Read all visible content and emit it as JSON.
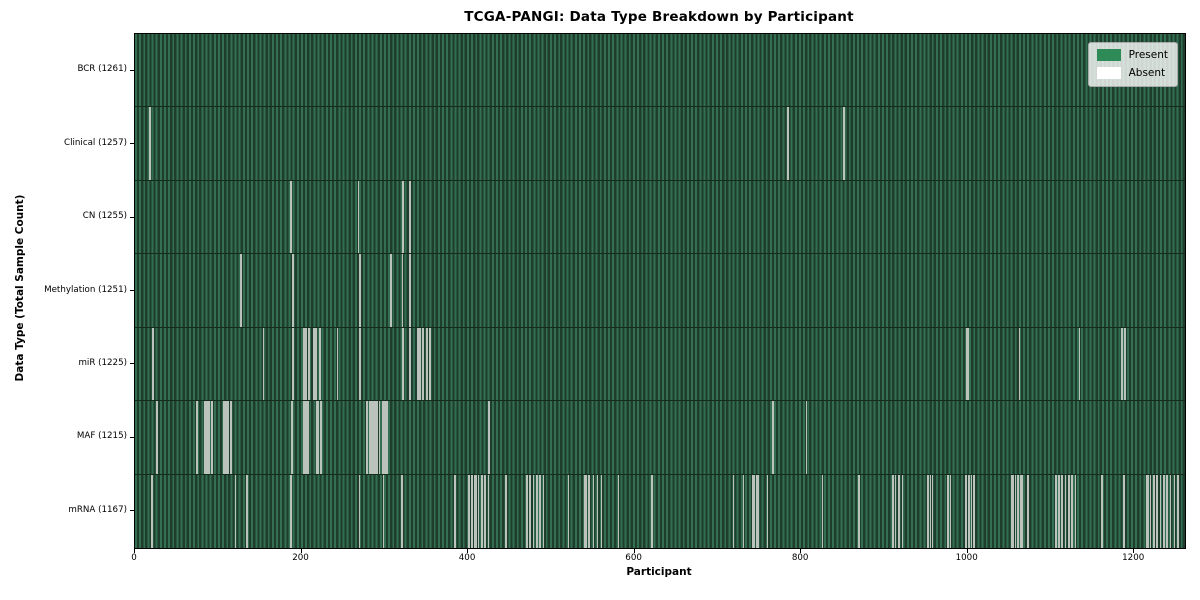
{
  "colors": {
    "present": "#2e8b57",
    "absent": "#ffffff",
    "stripe_bright": "#336f50",
    "stripe_dark": "#1f3d2c",
    "absent_line": "#bcc2bc",
    "row_divider": "#142a1c",
    "plot_border": "#000000",
    "legend_border": "#aaaaaa"
  },
  "legend": {
    "items": [
      {
        "label": "Present",
        "color": "#2e8b57"
      },
      {
        "label": "Absent",
        "color": "#ffffff"
      }
    ]
  },
  "chart_data": {
    "type": "heatmap",
    "title": "TCGA-PANGI: Data Type Breakdown by Participant",
    "xlabel": "Participant",
    "ylabel": "Data Type (Total Sample Count)",
    "x_ticks": [
      0,
      200,
      400,
      600,
      800,
      1000,
      1200
    ],
    "x_range": [
      0,
      1261
    ],
    "total_participants": 1261,
    "grid": false,
    "legend_position": "upper right",
    "legend_entries": [
      "Present",
      "Absent"
    ],
    "cell_present_color": "#2e8b57",
    "cell_absent_color": "#ffffff",
    "rows": [
      {
        "data_type": "BCR",
        "label": "BCR (1261)",
        "present_count": 1261,
        "absent_participants": []
      },
      {
        "data_type": "Clinical",
        "label": "Clinical (1257)",
        "present_count": 1257,
        "absent_participants": [
          17,
          18,
          784,
          851
        ]
      },
      {
        "data_type": "CN",
        "label": "CN (1255)",
        "present_count": 1255,
        "absent_participants": [
          186,
          187,
          268,
          321,
          322,
          330
        ]
      },
      {
        "data_type": "Methylation",
        "label": "Methylation (1251)",
        "present_count": 1251,
        "absent_participants": [
          126,
          127,
          189,
          190,
          269,
          270,
          307,
          321,
          329,
          330
        ]
      },
      {
        "data_type": "miR",
        "label": "miR (1225)",
        "present_count": 1225,
        "absent_participants": [
          21,
          22,
          154,
          189,
          202,
          203,
          205,
          208,
          209,
          214,
          215,
          217,
          221,
          222,
          243,
          269,
          270,
          321,
          322,
          329,
          330,
          339,
          340,
          342,
          345,
          346,
          350,
          353,
          354,
          999,
          1000,
          1062,
          1134,
          1185,
          1188,
          1189
        ]
      },
      {
        "data_type": "MAF",
        "label": "MAF (1215)",
        "present_count": 1215,
        "absent_participants": [
          26,
          74,
          83,
          84,
          86,
          87,
          89,
          92,
          106,
          107,
          108,
          109,
          110,
          111,
          112,
          114,
          115,
          188,
          202,
          203,
          205,
          206,
          208,
          218,
          219,
          222,
          223,
          278,
          279,
          282,
          283,
          285,
          286,
          287,
          289,
          290,
          293,
          297,
          298,
          299,
          301,
          302,
          424,
          425,
          766,
          806
        ]
      },
      {
        "data_type": "mRNA",
        "label": "mRNA (1167)",
        "present_count": 1167,
        "absent_participants": [
          20,
          120,
          134,
          186,
          187,
          269,
          298,
          320,
          321,
          384,
          400,
          401,
          404,
          408,
          409,
          412,
          416,
          417,
          420,
          424,
          445,
          470,
          471,
          474,
          478,
          482,
          483,
          486,
          490,
          520,
          540,
          541,
          545,
          550,
          555,
          560,
          580,
          620,
          621,
          718,
          730,
          742,
          743,
          746,
          748,
          759,
          825,
          869,
          909,
          910,
          913,
          917,
          921,
          951,
          952,
          955,
          957,
          975,
          976,
          979,
          997,
          998,
          1001,
          1004,
          1007,
          1053,
          1054,
          1057,
          1060,
          1063,
          1065,
          1072,
          1105,
          1106,
          1109,
          1113,
          1117,
          1121,
          1125,
          1129,
          1161,
          1187,
          1188,
          1215,
          1216,
          1219,
          1223,
          1227,
          1231,
          1235,
          1239,
          1243,
          1248,
          1252
        ]
      }
    ]
  }
}
